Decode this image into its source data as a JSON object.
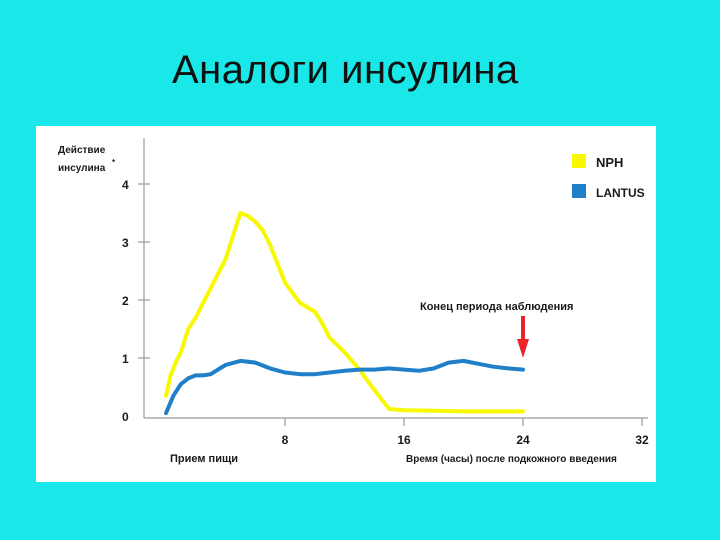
{
  "slide": {
    "title": "Аналоги инсулина"
  },
  "chart_data": {
    "type": "line",
    "title": "",
    "ylabel_line1": "Действие",
    "ylabel_line2": "инсулина",
    "ylabel_marker": "*",
    "xlabel_left": "Прием пищи",
    "xlabel_right": "Время (часы) после подкожного введения",
    "annotation": "Конец периода наблюдения",
    "annotation_x": 24,
    "xlim": [
      -4,
      32
    ],
    "ylim": [
      0,
      4
    ],
    "x_ticks": [
      8,
      16,
      24,
      32
    ],
    "x_tick_labels": [
      "8",
      "16",
      "24",
      "32"
    ],
    "y_ticks": [
      0,
      1,
      2,
      3,
      4
    ],
    "y_tick_labels": [
      "0",
      "1",
      "2",
      "3",
      "4"
    ],
    "legend_position": "top-right",
    "colors": {
      "nph": "#f8f800",
      "lantus": "#1f7fc8",
      "annotation_arrow": "#e8262a"
    },
    "series": [
      {
        "name": "NPH",
        "color": "#f8f800",
        "x": [
          0,
          0.3,
          0.7,
          1,
          1.5,
          2,
          3,
          4,
          4.5,
          5,
          5.5,
          6,
          6.5,
          7,
          8,
          9,
          10,
          10.5,
          11,
          12,
          13,
          14,
          15,
          16,
          18,
          20,
          22,
          24
        ],
        "y": [
          0.35,
          0.7,
          0.95,
          1.1,
          1.5,
          1.7,
          2.2,
          2.7,
          3.1,
          3.5,
          3.45,
          3.35,
          3.2,
          2.95,
          2.3,
          1.95,
          1.8,
          1.6,
          1.35,
          1.1,
          0.8,
          0.45,
          0.12,
          0.1,
          0.09,
          0.08,
          0.08,
          0.08
        ]
      },
      {
        "name": "LANTUS",
        "color": "#1f7fc8",
        "x": [
          0,
          0.5,
          1,
          1.5,
          2,
          2.5,
          3,
          4,
          5,
          6,
          7,
          8,
          9,
          10,
          11,
          12,
          13,
          14,
          15,
          16,
          17,
          18,
          19,
          20,
          21,
          22,
          23,
          24
        ],
        "y": [
          0.05,
          0.35,
          0.55,
          0.65,
          0.7,
          0.7,
          0.72,
          0.88,
          0.95,
          0.92,
          0.82,
          0.75,
          0.72,
          0.72,
          0.75,
          0.78,
          0.8,
          0.8,
          0.82,
          0.8,
          0.78,
          0.82,
          0.92,
          0.95,
          0.9,
          0.85,
          0.82,
          0.8
        ]
      }
    ]
  }
}
